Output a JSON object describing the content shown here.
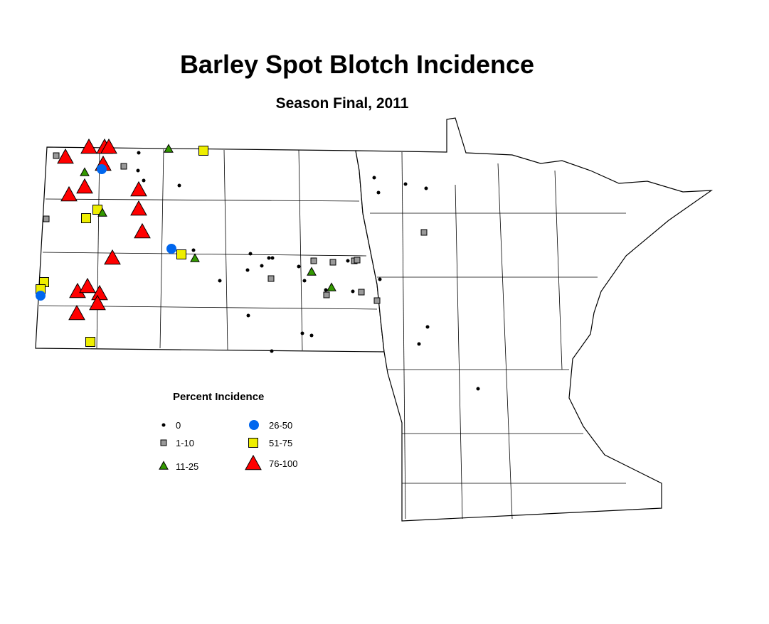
{
  "title": "Barley Spot Blotch Incidence",
  "subtitle": "Season Final, 2011",
  "legend": {
    "title": "Percent Incidence",
    "classes": [
      {
        "label": "0",
        "symbol": "small-dot",
        "color": "#000000"
      },
      {
        "label": "1-10",
        "symbol": "square",
        "color": "#999999"
      },
      {
        "label": "11-25",
        "symbol": "triangle",
        "color": "#339900"
      },
      {
        "label": "26-50",
        "symbol": "circle",
        "color": "#0066ee"
      },
      {
        "label": "51-75",
        "symbol": "square",
        "color": "#eeee00"
      },
      {
        "label": "76-100",
        "symbol": "triangle",
        "color": "#ff0000"
      }
    ]
  },
  "site_counts": {
    "0": 28,
    "1-10": 12,
    "11-25": 6,
    "26-50": 3,
    "51-75": 7,
    "76-100": 16
  }
}
